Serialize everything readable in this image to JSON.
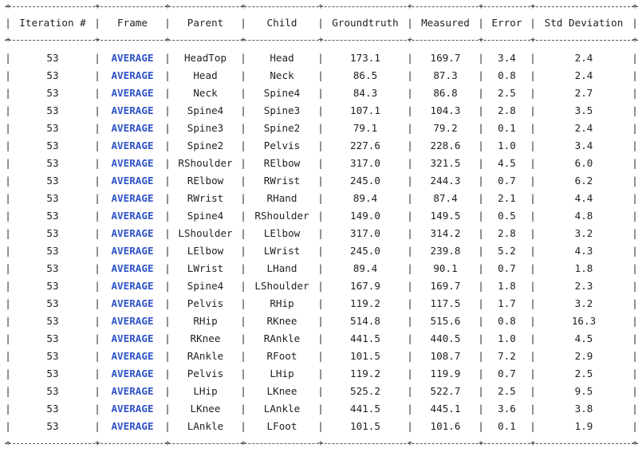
{
  "table": {
    "columns": [
      "Iteration #",
      "Frame",
      "Parent",
      "Child",
      "Groundtruth",
      "Measured",
      "Error",
      "Std Deviation"
    ],
    "rows": [
      [
        "53",
        "AVERAGE",
        "HeadTop",
        "Head",
        "173.1",
        "169.7",
        "3.4",
        "2.4"
      ],
      [
        "53",
        "AVERAGE",
        "Head",
        "Neck",
        "86.5",
        "87.3",
        "0.8",
        "2.4"
      ],
      [
        "53",
        "AVERAGE",
        "Neck",
        "Spine4",
        "84.3",
        "86.8",
        "2.5",
        "2.7"
      ],
      [
        "53",
        "AVERAGE",
        "Spine4",
        "Spine3",
        "107.1",
        "104.3",
        "2.8",
        "3.5"
      ],
      [
        "53",
        "AVERAGE",
        "Spine3",
        "Spine2",
        "79.1",
        "79.2",
        "0.1",
        "2.4"
      ],
      [
        "53",
        "AVERAGE",
        "Spine2",
        "Pelvis",
        "227.6",
        "228.6",
        "1.0",
        "3.4"
      ],
      [
        "53",
        "AVERAGE",
        "RShoulder",
        "RElbow",
        "317.0",
        "321.5",
        "4.5",
        "6.0"
      ],
      [
        "53",
        "AVERAGE",
        "RElbow",
        "RWrist",
        "245.0",
        "244.3",
        "0.7",
        "6.2"
      ],
      [
        "53",
        "AVERAGE",
        "RWrist",
        "RHand",
        "89.4",
        "87.4",
        "2.1",
        "4.4"
      ],
      [
        "53",
        "AVERAGE",
        "Spine4",
        "RShoulder",
        "149.0",
        "149.5",
        "0.5",
        "4.8"
      ],
      [
        "53",
        "AVERAGE",
        "LShoulder",
        "LElbow",
        "317.0",
        "314.2",
        "2.8",
        "3.2"
      ],
      [
        "53",
        "AVERAGE",
        "LElbow",
        "LWrist",
        "245.0",
        "239.8",
        "5.2",
        "4.3"
      ],
      [
        "53",
        "AVERAGE",
        "LWrist",
        "LHand",
        "89.4",
        "90.1",
        "0.7",
        "1.8"
      ],
      [
        "53",
        "AVERAGE",
        "Spine4",
        "LShoulder",
        "167.9",
        "169.7",
        "1.8",
        "2.3"
      ],
      [
        "53",
        "AVERAGE",
        "Pelvis",
        "RHip",
        "119.2",
        "117.5",
        "1.7",
        "3.2"
      ],
      [
        "53",
        "AVERAGE",
        "RHip",
        "RKnee",
        "514.8",
        "515.6",
        "0.8",
        "16.3"
      ],
      [
        "53",
        "AVERAGE",
        "RKnee",
        "RAnkle",
        "441.5",
        "440.5",
        "1.0",
        "4.5"
      ],
      [
        "53",
        "AVERAGE",
        "RAnkle",
        "RFoot",
        "101.5",
        "108.7",
        "7.2",
        "2.9"
      ],
      [
        "53",
        "AVERAGE",
        "Pelvis",
        "LHip",
        "119.2",
        "119.9",
        "0.7",
        "2.5"
      ],
      [
        "53",
        "AVERAGE",
        "LHip",
        "LKnee",
        "525.2",
        "522.7",
        "2.5",
        "9.5"
      ],
      [
        "53",
        "AVERAGE",
        "LKnee",
        "LAnkle",
        "441.5",
        "445.1",
        "3.6",
        "3.8"
      ],
      [
        "53",
        "AVERAGE",
        "LAnkle",
        "LFoot",
        "101.5",
        "101.6",
        "0.1",
        "1.9"
      ]
    ]
  },
  "colors": {
    "frame_text": "#2f54c9",
    "text": "#1f1f1f",
    "rule": "#555555"
  }
}
